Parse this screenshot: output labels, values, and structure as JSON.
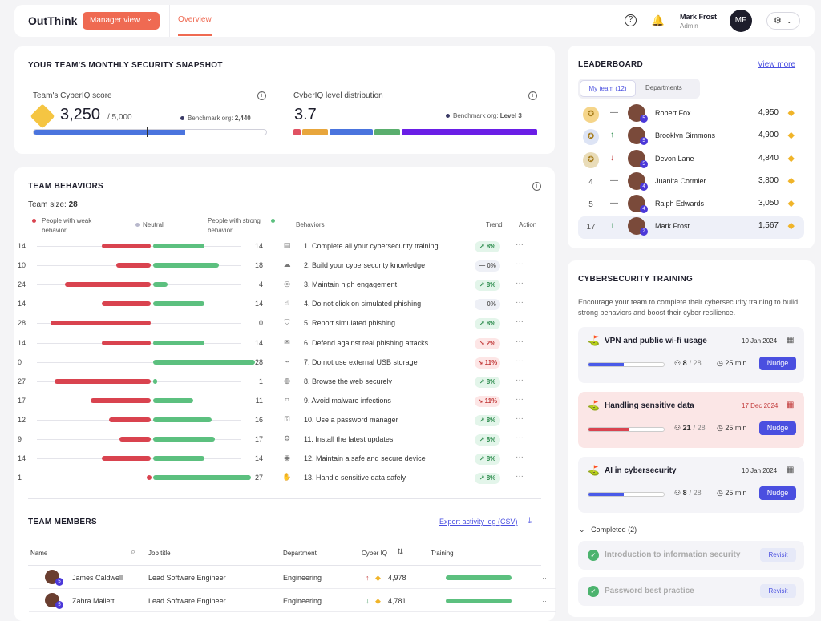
{
  "header": {
    "logo": "OutThink",
    "manager_view": "Manager view",
    "tab": "Overview",
    "user_name": "Mark Frost",
    "user_role": "Admin",
    "avatar_initials": "MF"
  },
  "snapshot": {
    "title": "YOUR TEAM'S MONTHLY SECURITY SNAPSHOT",
    "cyberiq_label": "Team's CyberIQ score",
    "score": "3,250",
    "score_max": "/ 5,000",
    "benchmark_label": "Benchmark org:",
    "benchmark_value": "2,440",
    "score_fraction": 0.65,
    "benchmark_fraction": 0.488,
    "dist_label": "CyberIQ level distribution",
    "level": "3.7",
    "dist_bench_label": "Benchmark org:",
    "dist_bench_value": "Level 3",
    "dist_segments": [
      {
        "color": "#e05262",
        "share": 3
      },
      {
        "color": "#e8a63c",
        "share": 11
      },
      {
        "color": "#4a74de",
        "share": 18
      },
      {
        "color": "#5aae6e",
        "share": 11
      },
      {
        "color": "#6a1ee6",
        "share": 57
      }
    ]
  },
  "behaviors": {
    "title": "TEAM BEHAVIORS",
    "team_size_label": "Team size:",
    "team_size": "28",
    "weak_label": "People with weak behavior",
    "neutral_label": "Neutral",
    "strong_label": "People with strong behavior",
    "col_behaviors": "Behaviors",
    "col_trend": "Trend",
    "col_action": "Action",
    "rows": [
      {
        "weak": "14",
        "strong": "14",
        "w": 14,
        "s": 14,
        "icon": "clipboard-icon",
        "text": "1. Complete all your cybersecurity training",
        "trend": "8%",
        "dir": "up"
      },
      {
        "weak": "10",
        "strong": "18",
        "w": 10,
        "s": 18,
        "icon": "brain-icon",
        "text": "2. Build your cybersecurity knowledge",
        "trend": "0%",
        "dir": "flat"
      },
      {
        "weak": "24",
        "strong": "4",
        "w": 24,
        "s": 4,
        "icon": "target-icon",
        "text": "3. Maintain high engagement",
        "trend": "8%",
        "dir": "up"
      },
      {
        "weak": "14",
        "strong": "14",
        "w": 14,
        "s": 14,
        "icon": "pointer-icon",
        "text": "4. Do not click on simulated phishing",
        "trend": "0%",
        "dir": "flat"
      },
      {
        "weak": "28",
        "strong": "0",
        "w": 28,
        "s": 0,
        "icon": "shield-icon",
        "text": "5. Report simulated phishing",
        "trend": "8%",
        "dir": "up"
      },
      {
        "weak": "14",
        "strong": "14",
        "w": 14,
        "s": 14,
        "icon": "mail-shield-icon",
        "text": "6. Defend against real phishing attacks",
        "trend": "2%",
        "dir": "down"
      },
      {
        "weak": "0",
        "strong": "28",
        "w": 0,
        "s": 28,
        "icon": "usb-icon",
        "text": "7. Do not use external USB storage",
        "trend": "11%",
        "dir": "down"
      },
      {
        "weak": "27",
        "strong": "1",
        "w": 27,
        "s": 1,
        "icon": "globe-icon",
        "text": "8. Browse the web securely",
        "trend": "8%",
        "dir": "up"
      },
      {
        "weak": "17",
        "strong": "11",
        "w": 17,
        "s": 11,
        "icon": "scan-icon",
        "text": "9. Avoid malware infections",
        "trend": "11%",
        "dir": "down"
      },
      {
        "weak": "12",
        "strong": "16",
        "w": 12,
        "s": 16,
        "icon": "lock-icon",
        "text": "10. Use a password manager",
        "trend": "8%",
        "dir": "up"
      },
      {
        "weak": "9",
        "strong": "17",
        "w": 9,
        "s": 17,
        "icon": "gear-icon",
        "text": "11. Install the latest updates",
        "trend": "8%",
        "dir": "up"
      },
      {
        "weak": "14",
        "strong": "14",
        "w": 14,
        "s": 14,
        "icon": "device-icon",
        "text": "12. Maintain a safe and secure device",
        "trend": "8%",
        "dir": "up"
      },
      {
        "weak": "1",
        "strong": "27",
        "w": 1,
        "s": 27,
        "icon": "hand-icon",
        "text": "13. Handle sensitive data safely",
        "trend": "8%",
        "dir": "up"
      }
    ]
  },
  "members": {
    "title": "TEAM MEMBERS",
    "export": "Export activity log (CSV)",
    "col_name": "Name",
    "col_job": "Job title",
    "col_dept": "Department",
    "col_iq": "Cyber IQ",
    "col_training": "Training",
    "rows": [
      {
        "name": "James Caldwell",
        "job": "Lead Software Engineer",
        "dept": "Engineering",
        "iq": "4,978",
        "dir": "↑",
        "badge": "5"
      },
      {
        "name": "Zahra Mallett",
        "job": "Lead Software Engineer",
        "dept": "Engineering",
        "iq": "4,781",
        "dir": "↓",
        "badge": "5"
      }
    ]
  },
  "leaderboard": {
    "title": "LEADERBOARD",
    "view_more": "View more",
    "tab_team": "My team (12)",
    "tab_depts": "Departments",
    "rows": [
      {
        "rank": "",
        "medal": "gold",
        "move": "—",
        "name": "Robert Fox",
        "score": "4,950",
        "badge": "5"
      },
      {
        "rank": "",
        "medal": "silver",
        "move": "↑",
        "name": "Brooklyn Simmons",
        "score": "4,900",
        "badge": "5"
      },
      {
        "rank": "",
        "medal": "bronze",
        "move": "↓",
        "name": "Devon Lane",
        "score": "4,840",
        "badge": "5"
      },
      {
        "rank": "4",
        "medal": "",
        "move": "—",
        "name": "Juanita Cormier",
        "score": "3,800",
        "badge": "4"
      },
      {
        "rank": "5",
        "medal": "",
        "move": "—",
        "name": "Ralph Edwards",
        "score": "3,050",
        "badge": "4"
      },
      {
        "rank": "17",
        "medal": "",
        "move": "↑",
        "name": "Mark Frost",
        "score": "1,567",
        "badge": "2"
      }
    ]
  },
  "training": {
    "title": "CYBERSECURITY TRAINING",
    "desc": "Encourage your team to complete their cybersecurity training to build strong behaviors and boost their cyber resilience.",
    "items": [
      {
        "name": "VPN and public wi-fi usage",
        "date": "10 Jan 2024",
        "done": "8",
        "total": "/ 28",
        "minutes": "25 min",
        "progress": 0.47,
        "nudge": "Nudge",
        "overdue": false
      },
      {
        "name": "Handling sensitive data",
        "date": "17 Dec 2024",
        "done": "21",
        "total": "/ 28",
        "minutes": "25 min",
        "progress": 0.53,
        "nudge": "Nudge",
        "overdue": true
      },
      {
        "name": "AI in cybersecurity",
        "date": "10 Jan 2024",
        "done": "8",
        "total": "/ 28",
        "minutes": "25 min",
        "progress": 0.47,
        "nudge": "Nudge",
        "overdue": false
      }
    ],
    "completed_label": "Completed (2)",
    "completed": [
      {
        "name": "Introduction to information security",
        "action": "Revisit"
      },
      {
        "name": "Password best practice",
        "action": "Revisit"
      }
    ]
  }
}
